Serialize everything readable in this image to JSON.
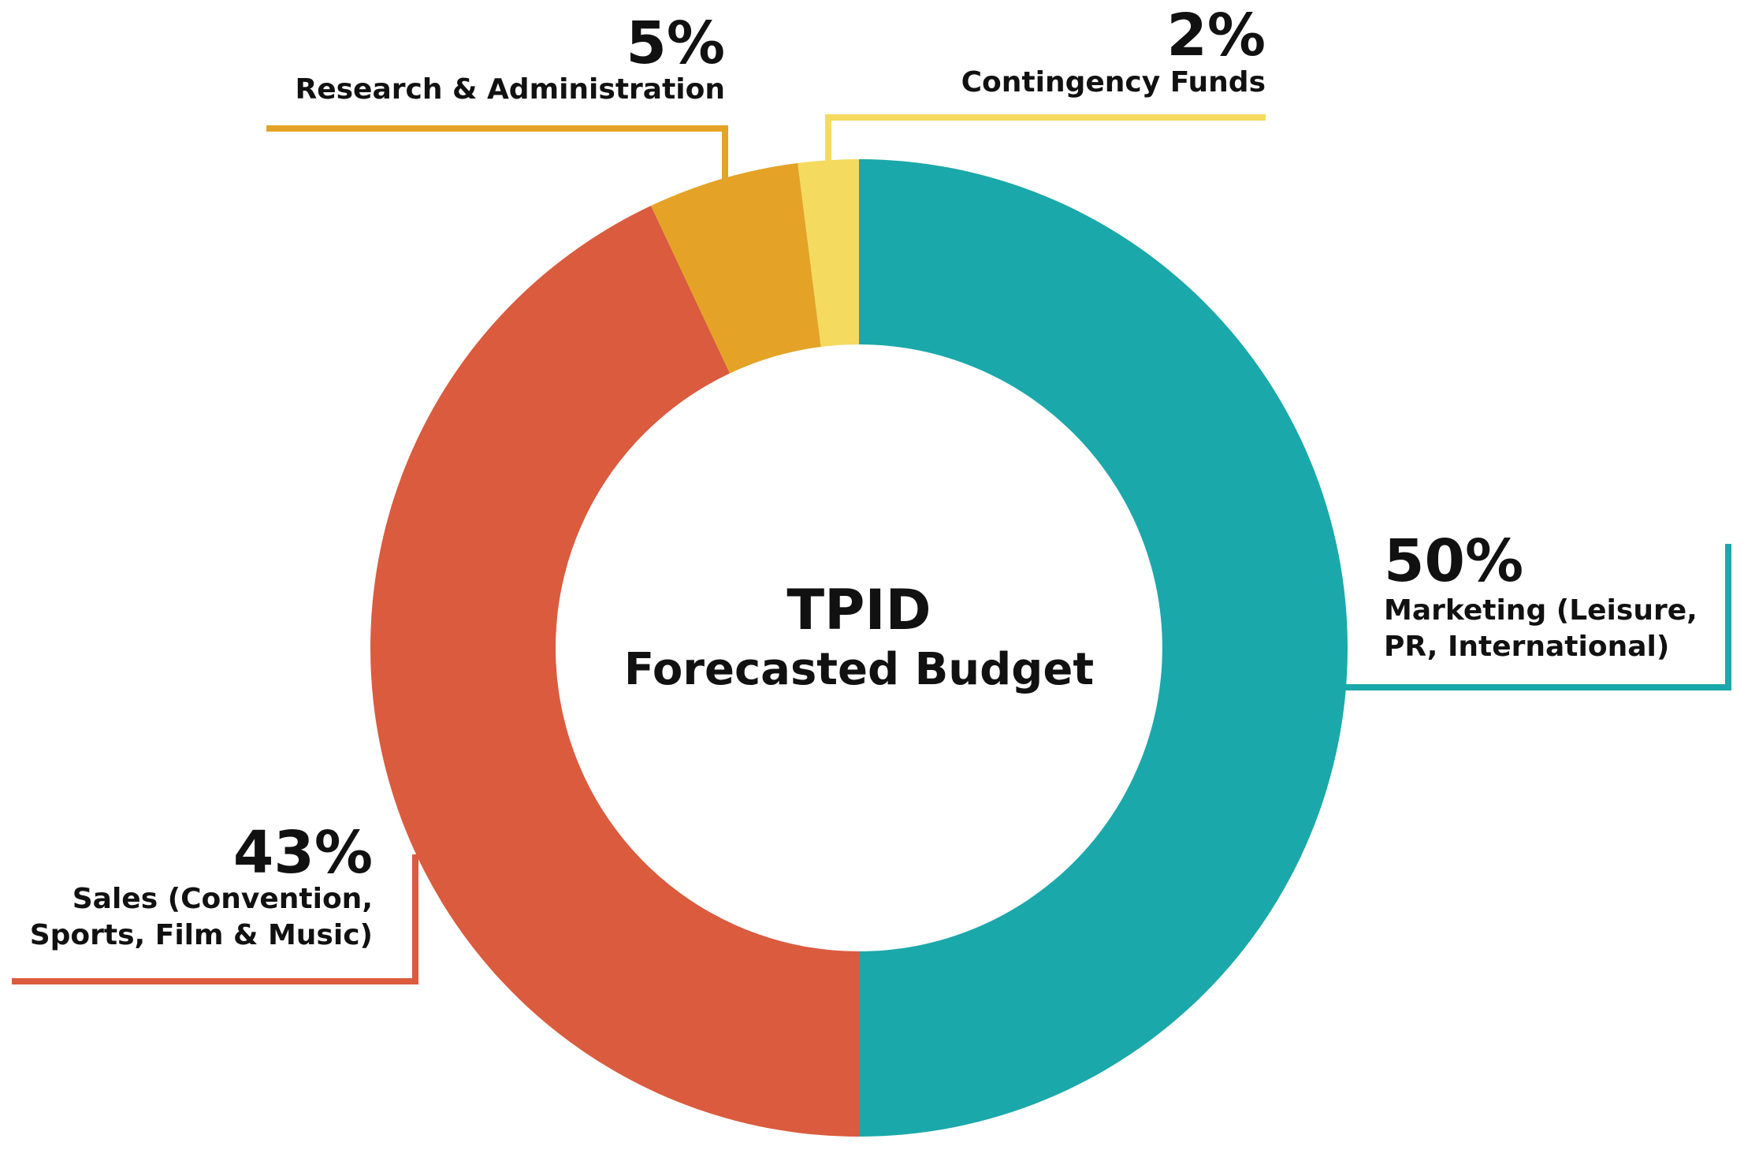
{
  "chart_data": {
    "type": "pie",
    "style": "donut",
    "title": "TPID",
    "subtitle": "Forecasted Budget",
    "slices": [
      {
        "key": "marketing",
        "value": 50,
        "percent_label": "50%",
        "lines": [
          "Marketing (Leisure,",
          "PR, International)"
        ],
        "color": "#1BA8AA"
      },
      {
        "key": "sales",
        "value": 43,
        "percent_label": "43%",
        "lines": [
          "Sales (Convention,",
          "Sports, Film & Music)"
        ],
        "color": "#DA5B3E"
      },
      {
        "key": "research",
        "value": 5,
        "percent_label": "5%",
        "lines": [
          "Research & Administration"
        ],
        "color": "#E4A326"
      },
      {
        "key": "contingency",
        "value": 2,
        "percent_label": "2%",
        "lines": [
          "Contingency Funds"
        ],
        "color": "#F5DA60"
      }
    ]
  }
}
